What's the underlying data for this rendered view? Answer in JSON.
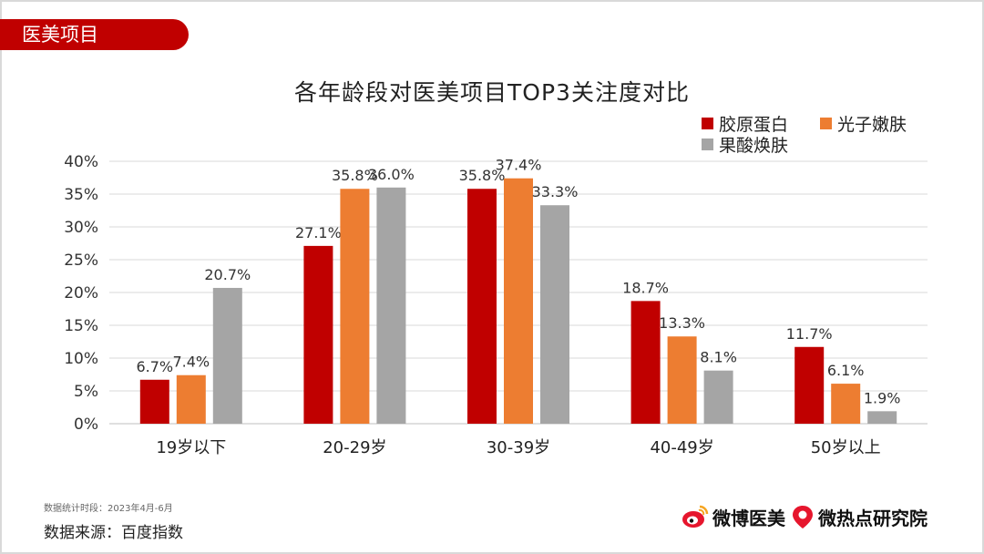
{
  "tag": {
    "label": "医美项目"
  },
  "footer": {
    "period": "数据统计时段：2023年4月-6月",
    "source": "数据来源：百度指数",
    "brand1": "微博医美",
    "brand2": "微热点研究院"
  },
  "colors": {
    "accent": "#c00000",
    "orange": "#ed7d31",
    "gray": "#a5a5a5"
  },
  "chart_data": {
    "type": "bar",
    "title": "各年龄段对医美项目TOP3关注度对比",
    "categories": [
      "19岁以下",
      "20-29岁",
      "30-39岁",
      "40-49岁",
      "50岁以上"
    ],
    "series": [
      {
        "name": "胶原蛋白",
        "color": "#c00000",
        "values": [
          6.7,
          27.1,
          35.8,
          18.7,
          11.7
        ],
        "labels": [
          "6.7%",
          "27.1%",
          "35.8%",
          "18.7%",
          "11.7%"
        ]
      },
      {
        "name": "光子嫩肤",
        "color": "#ed7d31",
        "values": [
          7.4,
          35.8,
          37.4,
          13.3,
          6.1
        ],
        "labels": [
          "7.4%",
          "35.8%",
          "37.4%",
          "13.3%",
          "6.1%"
        ]
      },
      {
        "name": "果酸焕肤",
        "color": "#a5a5a5",
        "values": [
          20.7,
          36.0,
          33.3,
          8.1,
          1.9
        ],
        "labels": [
          "20.7%",
          "36.0%",
          "33.3%",
          "8.1%",
          "1.9%"
        ]
      }
    ],
    "yticks": [
      "0%",
      "5%",
      "10%",
      "15%",
      "20%",
      "25%",
      "30%",
      "35%",
      "40%"
    ],
    "ylim": [
      0,
      40
    ],
    "grid": true,
    "legend": "top-right"
  }
}
